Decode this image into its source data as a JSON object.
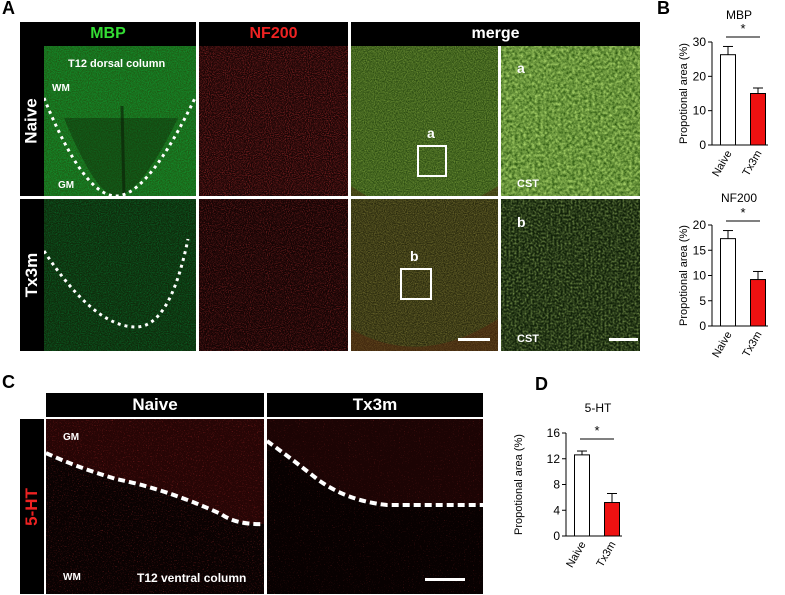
{
  "panels": {
    "A": "A",
    "B": "B",
    "C": "C",
    "D": "D"
  },
  "panel_a": {
    "headers": {
      "mbp": "MBP",
      "nf200": "NF200",
      "merge": "merge"
    },
    "rows": {
      "naive": "Naive",
      "tx3m": "Tx3m"
    },
    "labels": {
      "t12": "T12 dorsal column",
      "wm": "WM",
      "gm": "GM",
      "a": "a",
      "b": "b",
      "cst": "CST"
    },
    "colors": {
      "mbp": "#33dd33",
      "nf200": "#ee2222"
    }
  },
  "panel_c": {
    "headers": {
      "naive": "Naive",
      "tx3m": "Tx3m"
    },
    "row_label": "5-HT",
    "labels": {
      "gm": "GM",
      "wm": "WM",
      "t12": "T12 ventral column"
    },
    "color": "#ee2222"
  },
  "chart_data": [
    {
      "id": "mbp",
      "type": "bar",
      "title": "MBP",
      "ylabel": "Propotional area (%)",
      "categories": [
        "Naive",
        "Tx3m"
      ],
      "values": [
        26.3,
        15.0
      ],
      "errors": [
        2.4,
        1.6
      ],
      "ylim": [
        0,
        30
      ],
      "ticks": [
        "0",
        "10",
        "20",
        "30"
      ],
      "significance": "*",
      "colors": [
        "#ffffff",
        "#ee1111"
      ]
    },
    {
      "id": "nf200",
      "type": "bar",
      "title": "NF200",
      "ylabel": "Propotional area (%)",
      "categories": [
        "Naive",
        "Tx3m"
      ],
      "values": [
        17.3,
        9.2
      ],
      "errors": [
        1.6,
        1.6
      ],
      "ylim": [
        0,
        20
      ],
      "ticks": [
        "0",
        "5",
        "10",
        "15",
        "20"
      ],
      "significance": "*",
      "colors": [
        "#ffffff",
        "#ee1111"
      ]
    },
    {
      "id": "5ht",
      "type": "bar",
      "title": "5-HT",
      "ylabel": "Propotional area (%)",
      "categories": [
        "Naive",
        "Tx3m"
      ],
      "values": [
        12.6,
        5.2
      ],
      "errors": [
        0.6,
        1.4
      ],
      "ylim": [
        0,
        16
      ],
      "ticks": [
        "0",
        "4",
        "8",
        "12",
        "16"
      ],
      "significance": "*",
      "colors": [
        "#ffffff",
        "#ee1111"
      ]
    }
  ]
}
